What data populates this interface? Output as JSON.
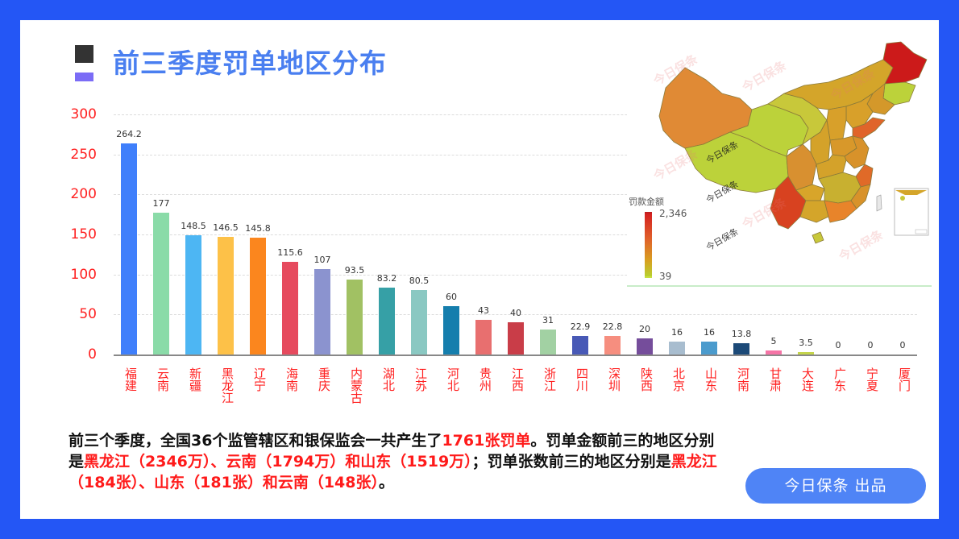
{
  "header": {
    "title": "前三季度罚单地区分布"
  },
  "chart_data": {
    "type": "bar",
    "title": "前三季度罚单地区分布",
    "xlabel": "",
    "ylabel": "",
    "ylim": [
      0,
      300
    ],
    "yticks": [
      "300",
      "250",
      "200",
      "150",
      "100",
      "50",
      "0"
    ],
    "grid": true,
    "categories": [
      "福建",
      "云南",
      "新疆",
      "黑龙江",
      "辽宁",
      "海南",
      "重庆",
      "内蒙古",
      "湖北",
      "江苏",
      "河北",
      "贵州",
      "江西",
      "浙江",
      "四川",
      "深圳",
      "陕西",
      "北京",
      "山东",
      "河南",
      "甘肃",
      "大连",
      "广东",
      "宁夏",
      "厦门"
    ],
    "values": [
      264.2,
      177,
      148.5,
      146.5,
      145.8,
      115.6,
      107,
      93.5,
      83.2,
      80.5,
      60,
      43,
      40,
      31,
      22.9,
      22.8,
      20,
      16,
      16,
      13.8,
      5,
      3.5,
      0,
      0,
      0
    ],
    "value_labels": [
      "264.2",
      "177",
      "148.5",
      "146.5",
      "145.8",
      "115.6",
      "107",
      "93.5",
      "83.2",
      "80.5",
      "60",
      "43",
      "40",
      "31",
      "22.9",
      "22.8",
      "20",
      "16",
      "16",
      "13.8",
      "5",
      "3.5",
      "0",
      "0",
      "0"
    ],
    "colors": [
      "#3f7ffb",
      "#8adba8",
      "#4db6f3",
      "#fdc148",
      "#fb861e",
      "#e64a5e",
      "#8b93cf",
      "#a1c163",
      "#36a0a6",
      "#8ac8c2",
      "#157ead",
      "#e86f6f",
      "#c93d48",
      "#a2d1a3",
      "#4859b6",
      "#f68e7f",
      "#754d9b",
      "#a8bdcf",
      "#4b9bcd",
      "#1c4a78",
      "#f574a6",
      "#c4d44b",
      "#cccccc",
      "#cccccc",
      "#cccccc"
    ]
  },
  "map": {
    "legend_title": "罚款金额",
    "legend_max": "2,346",
    "legend_min": "39",
    "watermark": "今日保条",
    "colors": {
      "high": "#cc1a1a",
      "mid_high": "#e0602a",
      "mid": "#e08a2a",
      "mid_low": "#d4a52a",
      "low": "#b8d236"
    }
  },
  "summary": {
    "p1": "前三个季度，全国36个监管辖区和银保监会一共产生了",
    "h1": "1761张罚单",
    "p2": "。罚单金额前三的地区分别是",
    "h2": "黑龙江（2346万）、云南（1794万）和山东（1519万）",
    "p3": "；罚单张数前三的地区分别是",
    "h3": "黑龙江（184张）、山东（181张）和云南（148张）",
    "p4": "。"
  },
  "credit": {
    "label": "今日保条  出品"
  }
}
